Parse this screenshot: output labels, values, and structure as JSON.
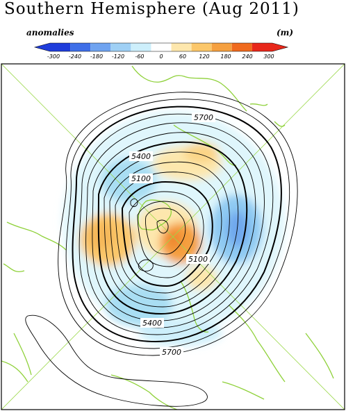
{
  "title": "Southern Hemisphere (Aug 2011)",
  "units_left": "anomalies",
  "units_right": "(m)",
  "colorbar": {
    "ticks": [
      "-300",
      "-240",
      "-180",
      "-120",
      "-60",
      "0",
      "60",
      "120",
      "180",
      "240",
      "300"
    ],
    "colors": [
      "#1f3ddb",
      "#3f6fe8",
      "#6fa3f0",
      "#9fd0f5",
      "#cdeffb",
      "#ffffff",
      "#fde7ad",
      "#fbc76a",
      "#f5a040",
      "#f06a1e",
      "#e8271a"
    ]
  },
  "contour_labels": [
    "5700",
    "5400",
    "5100",
    "5100",
    "5400",
    "5700"
  ]
}
